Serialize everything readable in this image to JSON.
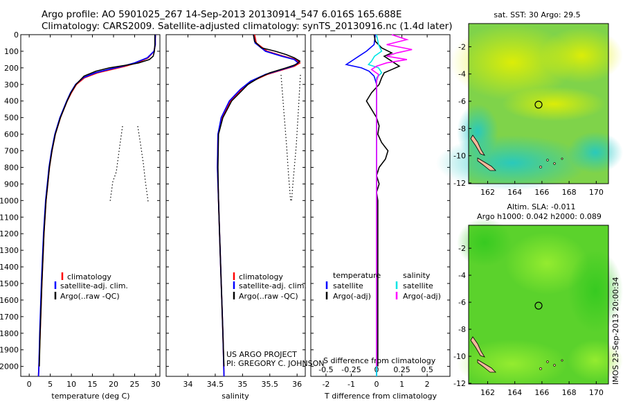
{
  "header": {
    "line1": "Argo profile: AO 5901025_267 14-Sep-2013 20130914_547 6.016S 165.688E",
    "line2": "Climatology: CARS2009. Satellite-adjusted climatology: synTS_20130916.nc (1.4d later)"
  },
  "colors": {
    "climatology": "#ff0000",
    "satellite": "#0000ff",
    "argo": "#000000",
    "sat_salinity": "#00e5e5",
    "argo_salinity": "#ff00ff"
  },
  "depth_axis": {
    "ticks": [
      0,
      100,
      200,
      300,
      400,
      500,
      600,
      700,
      800,
      900,
      1000,
      1100,
      1200,
      1300,
      1400,
      1500,
      1600,
      1700,
      1800,
      1900,
      2000
    ],
    "labels": [
      "0",
      "100",
      "200",
      "300",
      "400",
      "500",
      "600",
      "700",
      "800",
      "900",
      "1000",
      "1100",
      "1200",
      "1300",
      "1400",
      "1500",
      "1600",
      "1700",
      "1800",
      "1900",
      "2000"
    ],
    "range": [
      0,
      2060
    ]
  },
  "panel_temperature": {
    "xlabel": "temperature (deg C)",
    "xlim": [
      -2,
      31
    ],
    "xticks": [
      "0",
      "5",
      "10",
      "15",
      "20",
      "25",
      "30"
    ],
    "legend": [
      "climatology",
      "satellite-adj. clim.",
      "Argo(..raw -QC)"
    ]
  },
  "panel_salinity": {
    "xlabel": "salinity",
    "xlim": [
      33.6,
      36.15
    ],
    "xticks": [
      "34",
      "34.5",
      "35",
      "35.5",
      "36"
    ],
    "legend": [
      "climatology",
      "satellite-adj. clim.",
      "Argo(..raw -QC)"
    ],
    "credit1": "US ARGO PROJECT",
    "credit2": "PI: GREGORY C. JOHNSON"
  },
  "panel_difference": {
    "xlabel": "T difference from climatology",
    "xlabel_top": "S difference from climatology",
    "xticks_T": [
      "-2",
      "-1",
      "0",
      "1",
      "2"
    ],
    "xticks_S": [
      "-0.5",
      "-0.25",
      "0",
      "0.25",
      "0.5"
    ],
    "legend_temp_title": "temperature",
    "legend_sal_title": "salinity",
    "legend_sat": "satellite",
    "legend_argo": "Argo(-adj)"
  },
  "map_sst": {
    "title": "sat. SST: 30 Argo: 29.5",
    "xticks": [
      "162",
      "164",
      "166",
      "168",
      "170"
    ],
    "yticks": [
      "-2",
      "-4",
      "-6",
      "-8",
      "-10",
      "-12"
    ]
  },
  "map_sla": {
    "title1": "Altim. SLA: -0.011",
    "title2": "Argo h1000: 0.042 h2000: 0.089",
    "xticks": [
      "162",
      "164",
      "166",
      "168",
      "170"
    ],
    "yticks": [
      "-2",
      "-4",
      "-6",
      "-8",
      "-10",
      "-12"
    ]
  },
  "watermark": "IMOS 23-Sep-2013 20:00:34",
  "chart_data": [
    {
      "type": "line",
      "title": "",
      "xlabel": "temperature (deg C)",
      "ylabel": "",
      "xlim": [
        -2,
        31
      ],
      "ylim": [
        2060,
        0
      ],
      "series": [
        {
          "name": "climatology",
          "depth": [
            0,
            60,
            100,
            140,
            170,
            190,
            210,
            230,
            260,
            300,
            350,
            400,
            500,
            600,
            700,
            800,
            900,
            1000,
            1200,
            1500,
            1800,
            2000,
            2060
          ],
          "values": [
            29.9,
            29.9,
            29.6,
            28.2,
            25.5,
            22.8,
            19.5,
            16.2,
            13.1,
            11.2,
            10.0,
            9.0,
            7.4,
            6.2,
            5.4,
            4.8,
            4.4,
            4.0,
            3.5,
            3.0,
            2.6,
            2.3,
            2.2
          ]
        },
        {
          "name": "satellite-adj. clim.",
          "depth": [
            0,
            60,
            100,
            140,
            170,
            190,
            210,
            230,
            260,
            300,
            350,
            400,
            500,
            600,
            700,
            800,
            900,
            1000,
            1200,
            1500,
            1800,
            2000,
            2060
          ],
          "values": [
            29.9,
            29.9,
            29.6,
            28.0,
            25.0,
            22.2,
            18.8,
            15.7,
            12.8,
            11.0,
            9.8,
            8.9,
            7.3,
            6.1,
            5.3,
            4.7,
            4.3,
            3.9,
            3.4,
            2.9,
            2.5,
            2.3,
            2.2
          ]
        },
        {
          "name": "Argo(..raw -QC)",
          "depth": [
            0,
            60,
            100,
            130,
            150,
            170,
            180,
            200,
            220,
            250,
            300,
            350,
            400,
            500,
            600,
            700,
            800,
            900,
            1000,
            1200,
            1500,
            1800,
            2000
          ],
          "values": [
            29.8,
            29.8,
            29.7,
            29.4,
            28.5,
            26.0,
            24.0,
            19.0,
            15.8,
            13.0,
            11.1,
            9.9,
            9.0,
            7.4,
            6.2,
            5.4,
            4.8,
            4.4,
            4.0,
            3.5,
            3.0,
            2.6,
            2.4
          ]
        }
      ]
    },
    {
      "type": "line",
      "title": "",
      "xlabel": "salinity",
      "ylabel": "",
      "xlim": [
        33.6,
        36.15
      ],
      "ylim": [
        2060,
        0
      ],
      "series": [
        {
          "name": "climatology",
          "depth": [
            0,
            50,
            100,
            130,
            150,
            170,
            190,
            210,
            240,
            280,
            330,
            400,
            500,
            600,
            800,
            1000,
            1200,
            1500,
            1800,
            2060
          ],
          "values": [
            35.22,
            35.25,
            35.45,
            35.75,
            35.98,
            36.05,
            35.95,
            35.75,
            35.45,
            35.18,
            34.98,
            34.78,
            34.62,
            34.55,
            34.54,
            34.56,
            34.58,
            34.61,
            34.64,
            34.66
          ]
        },
        {
          "name": "satellite-adj. clim.",
          "depth": [
            0,
            50,
            100,
            130,
            150,
            170,
            190,
            210,
            240,
            280,
            330,
            400,
            500,
            600,
            800,
            1000,
            1200,
            1500,
            1800,
            2060
          ],
          "values": [
            35.2,
            35.23,
            35.42,
            35.72,
            35.95,
            36.02,
            35.92,
            35.72,
            35.42,
            35.15,
            34.96,
            34.76,
            34.61,
            34.55,
            34.54,
            34.56,
            34.58,
            34.61,
            34.64,
            34.66
          ]
        },
        {
          "name": "Argo(..raw -QC)",
          "depth": [
            0,
            40,
            80,
            100,
            120,
            140,
            160,
            180,
            200,
            230,
            260,
            300,
            350,
            400,
            500,
            600,
            800,
            1000,
            1200,
            1500,
            1800,
            2000
          ],
          "values": [
            35.2,
            35.22,
            35.35,
            35.6,
            35.8,
            35.95,
            36.05,
            35.98,
            35.8,
            35.5,
            35.3,
            35.1,
            34.95,
            34.8,
            34.64,
            34.56,
            34.55,
            34.56,
            34.58,
            34.61,
            34.64,
            34.66
          ]
        }
      ]
    },
    {
      "type": "line",
      "title": "",
      "xlabel": "T difference from climatology",
      "xlabel_top": "S difference from climatology",
      "ylabel": "",
      "xlim": [
        -2.6,
        2.9
      ],
      "ylim": [
        2060,
        0
      ],
      "series": [
        {
          "name": "temperature satellite",
          "depth": [
            0,
            60,
            100,
            130,
            160,
            180,
            200,
            220,
            250,
            300,
            400,
            600,
            800,
            1000,
            1400,
            2000,
            2060
          ],
          "values": [
            -0.05,
            -0.1,
            -0.4,
            -0.7,
            -1.0,
            -1.2,
            -0.6,
            -0.3,
            -0.1,
            0.0,
            0.0,
            0.0,
            0.0,
            0.0,
            0.0,
            0.0,
            0.0
          ]
        },
        {
          "name": "temperature Argo(-adj)",
          "depth": [
            0,
            40,
            80,
            110,
            130,
            150,
            170,
            190,
            210,
            230,
            260,
            300,
            350,
            400,
            450,
            500,
            550,
            600,
            650,
            700,
            750,
            800,
            850,
            900,
            950,
            1000,
            1200,
            1500,
            1800,
            2000
          ],
          "values": [
            -0.1,
            -0.05,
            0.2,
            0.6,
            0.3,
            0.5,
            0.7,
            0.9,
            0.6,
            0.3,
            0.2,
            0.1,
            -0.2,
            -0.4,
            -0.2,
            0.0,
            0.1,
            0.05,
            0.2,
            0.45,
            0.35,
            0.1,
            0.0,
            0.1,
            0.0,
            0.05,
            0.05,
            0.05,
            0.05,
            0.05
          ]
        },
        {
          "name": "salinity satellite",
          "depth": [
            0,
            60,
            100,
            130,
            160,
            180,
            200,
            230,
            260,
            300,
            400,
            600,
            800,
            1000,
            1400,
            2000,
            2060
          ],
          "values": [
            0.0,
            0.02,
            0.05,
            -0.02,
            -0.05,
            -0.08,
            0.02,
            0.05,
            0.0,
            0.0,
            0.0,
            0.0,
            0.0,
            0.0,
            0.0,
            0.0,
            0.0
          ]
        },
        {
          "name": "salinity Argo(-adj)",
          "depth": [
            0,
            30,
            60,
            90,
            110,
            130,
            150,
            170,
            190,
            210,
            240,
            280,
            330,
            400,
            600,
            800,
            1000,
            1400,
            1800,
            2000
          ],
          "values": [
            0.15,
            0.3,
            0.1,
            0.35,
            0.2,
            0.1,
            0.3,
            0.1,
            0.0,
            -0.05,
            0.02,
            0.0,
            0.0,
            0.0,
            0.0,
            0.0,
            0.0,
            0.0,
            0.0,
            0.0
          ]
        }
      ]
    }
  ]
}
